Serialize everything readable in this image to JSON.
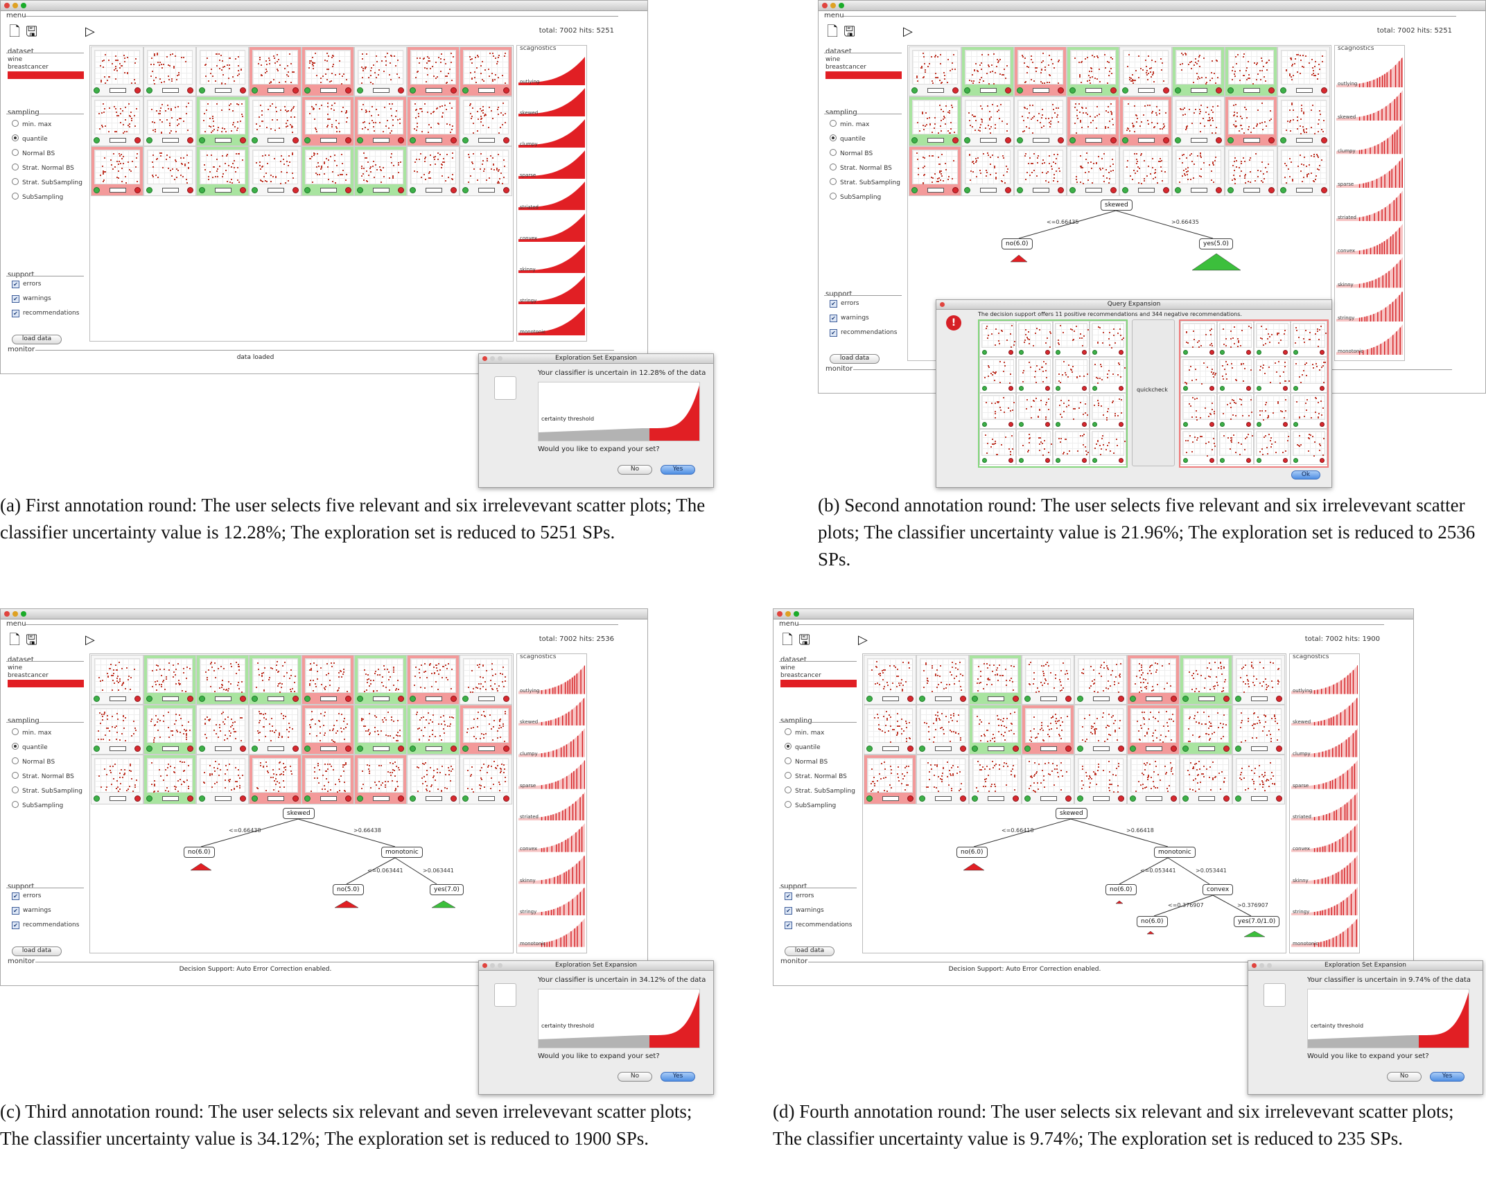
{
  "panels": [
    {
      "id": "a",
      "menu_label": "menu",
      "total": "total: 7002 hits: 5251",
      "dataset": {
        "label": "dataset",
        "items": [
          "wine",
          "breastcancer",
          "dataset3"
        ],
        "selected": 2
      },
      "sampling": {
        "label": "sampling",
        "options": [
          "min. max",
          "quantile",
          "Normal BS",
          "Strat. Normal BS",
          "Strat. SubSampling",
          "SubSampling"
        ],
        "selected": 1
      },
      "support": {
        "label": "support",
        "items": [
          "errors",
          "warnings",
          "recommendations"
        ],
        "checked": [
          true,
          true,
          true
        ]
      },
      "load_label": "load data",
      "monitor_label": "monitor",
      "monitor_text": "data loaded",
      "scagnostics_label": "scagnostics",
      "scag_items": [
        "outlying",
        "skewed",
        "clumpy",
        "sparse",
        "striated",
        "convex",
        "skinny",
        "stringy",
        "monotonic"
      ],
      "grid_states": [
        [
          "n",
          "n",
          "n",
          "neg",
          "neg",
          "n",
          "neg",
          "neg"
        ],
        [
          "n",
          "n",
          "pos",
          "n",
          "neg",
          "neg",
          "neg",
          "n"
        ],
        [
          "neg",
          "n",
          "pos",
          "n",
          "pos",
          "pos",
          "n",
          "n"
        ]
      ],
      "tree": null,
      "dialog": {
        "title": "Exploration Set Expansion",
        "message": "Your classifier is uncertain in 12.28% of the data",
        "threshold_label": "certainty threshold",
        "question": "Would you like to expand your set?",
        "no": "No",
        "yes": "Yes"
      },
      "caption": "(a) First annotation round: The user selects five relevant and six irrelevevant scatter plots; The classifier uncertainty value is 12.28%; The exploration set is reduced to 5251 SPs."
    },
    {
      "id": "b",
      "menu_label": "menu",
      "total": "total: 7002 hits: 5251",
      "dataset": {
        "label": "dataset",
        "items": [
          "wine",
          "breastcancer",
          "dataset3"
        ],
        "selected": 2
      },
      "sampling": {
        "label": "sampling",
        "options": [
          "min. max",
          "quantile",
          "Normal BS",
          "Strat. Normal BS",
          "Strat. SubSampling",
          "SubSampling"
        ],
        "selected": 1
      },
      "support": {
        "label": "support",
        "items": [
          "errors",
          "warnings",
          "recommendations"
        ],
        "checked": [
          true,
          true,
          true
        ]
      },
      "load_label": "load data",
      "monitor_label": "monitor",
      "monitor_text": "",
      "scagnostics_label": "scagnostics",
      "scag_items": [
        "outlying",
        "skewed",
        "clumpy",
        "sparse",
        "striated",
        "convex",
        "skinny",
        "stringy",
        "monotonic"
      ],
      "grid_states": [
        [
          "n",
          "pos",
          "neg",
          "pos",
          "n",
          "pos",
          "pos",
          "n"
        ],
        [
          "pos",
          "n",
          "n",
          "neg",
          "neg",
          "n",
          "neg",
          "n"
        ],
        [
          "neg",
          "n",
          "n",
          "n",
          "n",
          "n",
          "n",
          "n"
        ]
      ],
      "tree": {
        "root": "skewed",
        "left_edge": "<=0.66435",
        "right_edge": ">0.66435",
        "left_leaf": "no(6.0)",
        "right_leaf": "yes(5.0)"
      },
      "query_dialog": {
        "title": "Query Expansion",
        "message": "The decision support offers 11 positive recommendations and 344 negative recommendations.",
        "middle": "quickcheck",
        "ok": "Ok"
      },
      "caption": "(b) Second annotation round: The user selects five relevant and six irrelevevant scatter plots; The classifier uncertainty value is 21.96%; The exploration set is reduced to 2536 SPs."
    },
    {
      "id": "c",
      "menu_label": "menu",
      "total": "total: 7002 hits: 2536",
      "dataset": {
        "label": "dataset",
        "items": [
          "wine",
          "breastcancer",
          "dataset3"
        ],
        "selected": 2
      },
      "sampling": {
        "label": "sampling",
        "options": [
          "min. max",
          "quantile",
          "Normal BS",
          "Strat. Normal BS",
          "Strat. SubSampling",
          "SubSampling"
        ],
        "selected": 1
      },
      "support": {
        "label": "support",
        "items": [
          "errors",
          "warnings",
          "recommendations"
        ],
        "checked": [
          true,
          true,
          true
        ]
      },
      "load_label": "load data",
      "monitor_label": "monitor",
      "monitor_text": "Decision Support: Auto Error Correction enabled.",
      "scagnostics_label": "scagnostics",
      "scag_items": [
        "outlying",
        "skewed",
        "clumpy",
        "sparse",
        "striated",
        "convex",
        "skinny",
        "stringy",
        "monotonic"
      ],
      "grid_states": [
        [
          "n",
          "pos",
          "pos",
          "pos",
          "neg",
          "pos",
          "neg",
          "n"
        ],
        [
          "n",
          "pos",
          "n",
          "n",
          "neg",
          "pos",
          "pos",
          "neg"
        ],
        [
          "n",
          "pos",
          "n",
          "neg",
          "neg",
          "neg",
          "n",
          "n"
        ]
      ],
      "tree": {
        "root": "skewed",
        "left_edge": "<=0.66438",
        "right_edge": ">0.66438",
        "left_leaf": "no(6.0)",
        "mid": "monotonic",
        "mid_left_edge": "<=0.063441",
        "mid_right_edge": ">0.063441",
        "mid_left_leaf": "no(5.0)",
        "mid_right_leaf": "yes(7.0)"
      },
      "dialog": {
        "title": "Exploration Set Expansion",
        "message": "Your classifier is uncertain in 34.12% of the data",
        "threshold_label": "certainty threshold",
        "question": "Would you like to expand your set?",
        "no": "No",
        "yes": "Yes"
      },
      "caption": "(c) Third annotation round: The user selects six relevant and seven irrelevevant scatter plots; The classifier uncertainty value is 34.12%; The exploration set is reduced to 1900 SPs."
    },
    {
      "id": "d",
      "menu_label": "menu",
      "total": "total: 7002 hits: 1900",
      "dataset": {
        "label": "dataset",
        "items": [
          "wine",
          "breastcancer",
          "dataset3"
        ],
        "selected": 2
      },
      "sampling": {
        "label": "sampling",
        "options": [
          "min. max",
          "quantile",
          "Normal BS",
          "Strat. Normal BS",
          "Strat. SubSampling",
          "SubSampling"
        ],
        "selected": 1
      },
      "support": {
        "label": "support",
        "items": [
          "errors",
          "warnings",
          "recommendations"
        ],
        "checked": [
          true,
          true,
          true
        ]
      },
      "load_label": "load data",
      "monitor_label": "monitor",
      "monitor_text": "Decision Support: Auto Error Correction enabled.",
      "scagnostics_label": "scagnostics",
      "scag_items": [
        "outlying",
        "skewed",
        "clumpy",
        "sparse",
        "striated",
        "convex",
        "skinny",
        "stringy",
        "monotonic"
      ],
      "grid_states": [
        [
          "n",
          "n",
          "pos",
          "n",
          "n",
          "neg",
          "pos",
          "n"
        ],
        [
          "n",
          "n",
          "pos",
          "neg",
          "n",
          "neg",
          "pos",
          "n"
        ],
        [
          "neg",
          "n",
          "n",
          "n",
          "n",
          "n",
          "n",
          "n"
        ]
      ],
      "tree": {
        "root": "skewed",
        "left_edge": "<=0.66418",
        "right_edge": ">0.66418",
        "left_leaf": "no(6.0)",
        "mid": "monotonic",
        "mid_left_edge": "<=0.053441",
        "mid_right_edge": ">0.053441",
        "mid_left_leaf": "no(6.0)",
        "low": "convex",
        "low_left_edge": "<=0.376907",
        "low_right_edge": ">0.376907",
        "low_left_leaf": "no(6.0)",
        "low_right_leaf": "yes(7.0/1.0)"
      },
      "dialog": {
        "title": "Exploration Set Expansion",
        "message": "Your classifier is uncertain in 9.74% of the data",
        "threshold_label": "certainty threshold",
        "question": "Would you like to expand your set?",
        "no": "No",
        "yes": "Yes"
      },
      "caption": "(d) Fourth annotation round: The user selects six relevant and six irrelevevant scatter plots; The classifier uncertainty value is 9.74%; The exploration set is reduced to 235 SPs."
    }
  ]
}
